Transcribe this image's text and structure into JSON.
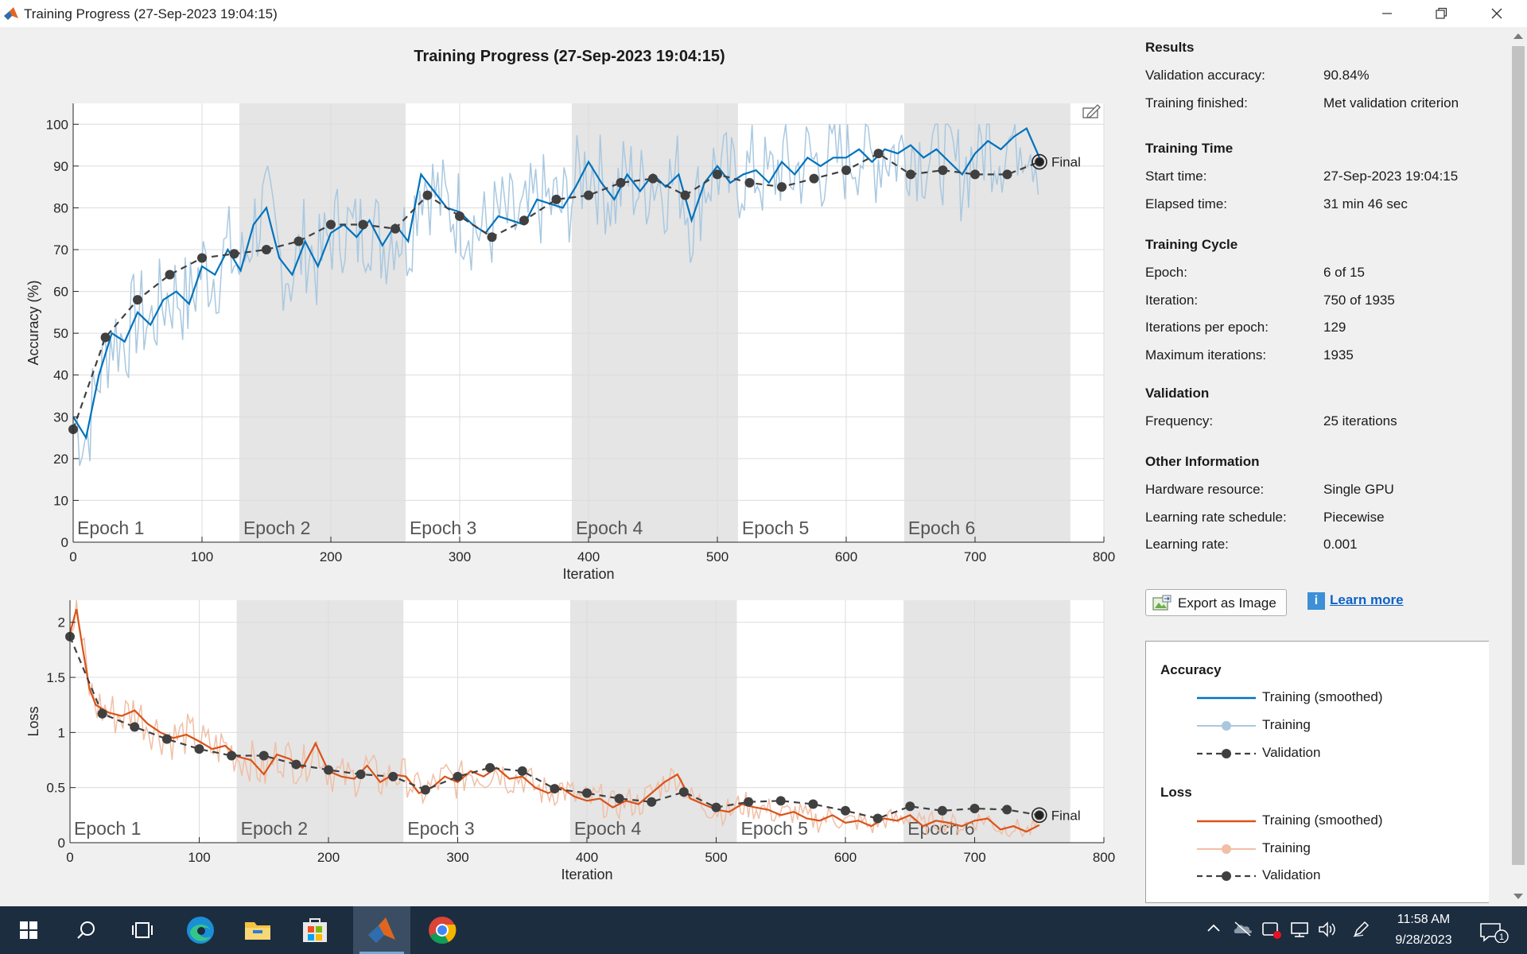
{
  "window": {
    "title": "Training Progress (27-Sep-2023 19:04:15)"
  },
  "chart_title": "Training Progress (27-Sep-2023 19:04:15)",
  "chart_data": [
    {
      "type": "line",
      "title": "Training Progress (27-Sep-2023 19:04:15)",
      "xlabel": "Iteration",
      "ylabel": "Accuracy (%)",
      "xlim": [
        0,
        800
      ],
      "ylim": [
        0,
        105
      ],
      "xticks": [
        0,
        100,
        200,
        300,
        400,
        500,
        600,
        700,
        800
      ],
      "yticks": [
        0,
        10,
        20,
        30,
        40,
        50,
        60,
        70,
        80,
        90,
        100
      ],
      "grid": true,
      "epochs": [
        "Epoch 1",
        "Epoch 2",
        "Epoch 3",
        "Epoch 4",
        "Epoch 5",
        "Epoch 6"
      ],
      "final_label": "Final",
      "series": [
        {
          "name": "Validation",
          "x": [
            0,
            25,
            50,
            75,
            100,
            125,
            150,
            175,
            200,
            225,
            250,
            275,
            300,
            325,
            350,
            375,
            400,
            425,
            450,
            475,
            500,
            525,
            550,
            575,
            600,
            625,
            650,
            675,
            700,
            725,
            750
          ],
          "values": [
            27,
            49,
            58,
            64,
            68,
            69,
            70,
            72,
            76,
            76,
            75,
            83,
            78,
            73,
            77,
            82,
            83,
            86,
            87,
            83,
            88,
            86,
            85,
            87,
            89,
            93,
            88,
            89,
            88,
            88,
            91
          ]
        },
        {
          "name": "Training (smoothed)",
          "x": [
            0,
            10,
            20,
            30,
            40,
            50,
            60,
            70,
            80,
            90,
            100,
            110,
            120,
            130,
            140,
            150,
            160,
            170,
            180,
            190,
            200,
            210,
            220,
            230,
            240,
            250,
            260,
            270,
            280,
            290,
            300,
            310,
            320,
            330,
            340,
            350,
            360,
            370,
            380,
            390,
            400,
            410,
            420,
            430,
            440,
            450,
            460,
            470,
            480,
            490,
            500,
            510,
            520,
            530,
            540,
            550,
            560,
            570,
            580,
            590,
            600,
            610,
            620,
            630,
            640,
            650,
            660,
            670,
            680,
            690,
            700,
            710,
            720,
            730,
            740,
            750
          ],
          "values": [
            30,
            25,
            40,
            50,
            48,
            55,
            52,
            58,
            60,
            57,
            66,
            64,
            70,
            65,
            76,
            80,
            68,
            64,
            72,
            66,
            74,
            76,
            73,
            77,
            71,
            76,
            72,
            88,
            84,
            80,
            79,
            76,
            74,
            78,
            77,
            76,
            82,
            81,
            80,
            85,
            91,
            86,
            82,
            88,
            84,
            88,
            85,
            88,
            77,
            86,
            90,
            86,
            88,
            89,
            86,
            91,
            88,
            92,
            90,
            92,
            92,
            94,
            91,
            94,
            93,
            95,
            92,
            94,
            91,
            88,
            93,
            96,
            94,
            97,
            99,
            92
          ]
        }
      ]
    },
    {
      "type": "line",
      "xlabel": "Iteration",
      "ylabel": "Loss",
      "xlim": [
        0,
        800
      ],
      "ylim": [
        0,
        2.2
      ],
      "xticks": [
        0,
        100,
        200,
        300,
        400,
        500,
        600,
        700,
        800
      ],
      "yticks": [
        0,
        0.5,
        1,
        1.5,
        2
      ],
      "grid": true,
      "epochs": [
        "Epoch 1",
        "Epoch 2",
        "Epoch 3",
        "Epoch 4",
        "Epoch 5",
        "Epoch 6"
      ],
      "final_label": "Final",
      "series": [
        {
          "name": "Validation",
          "x": [
            0,
            25,
            50,
            75,
            100,
            125,
            150,
            175,
            200,
            225,
            250,
            275,
            300,
            325,
            350,
            375,
            400,
            425,
            450,
            475,
            500,
            525,
            550,
            575,
            600,
            625,
            650,
            675,
            700,
            725,
            750
          ],
          "values": [
            1.87,
            1.17,
            1.05,
            0.94,
            0.85,
            0.79,
            0.79,
            0.71,
            0.66,
            0.62,
            0.6,
            0.48,
            0.6,
            0.68,
            0.65,
            0.49,
            0.45,
            0.4,
            0.37,
            0.46,
            0.32,
            0.37,
            0.38,
            0.35,
            0.29,
            0.22,
            0.33,
            0.29,
            0.31,
            0.3,
            0.25
          ]
        },
        {
          "name": "Training (smoothed)",
          "x": [
            0,
            5,
            10,
            15,
            20,
            30,
            40,
            50,
            60,
            70,
            80,
            90,
            100,
            110,
            120,
            130,
            140,
            150,
            160,
            170,
            180,
            190,
            200,
            210,
            220,
            230,
            240,
            250,
            260,
            270,
            280,
            290,
            300,
            310,
            320,
            330,
            340,
            350,
            360,
            370,
            380,
            390,
            400,
            410,
            420,
            430,
            440,
            450,
            460,
            470,
            480,
            490,
            500,
            510,
            520,
            530,
            540,
            550,
            560,
            570,
            580,
            590,
            600,
            610,
            620,
            630,
            640,
            650,
            660,
            670,
            680,
            690,
            700,
            710,
            720,
            730,
            740,
            750
          ],
          "values": [
            1.9,
            2.12,
            1.75,
            1.4,
            1.25,
            1.18,
            1.15,
            1.2,
            1.08,
            1.0,
            0.95,
            0.98,
            0.92,
            0.85,
            0.88,
            0.78,
            0.75,
            0.62,
            0.8,
            0.76,
            0.68,
            0.9,
            0.65,
            0.6,
            0.58,
            0.7,
            0.55,
            0.62,
            0.6,
            0.45,
            0.5,
            0.6,
            0.55,
            0.65,
            0.6,
            0.68,
            0.58,
            0.6,
            0.5,
            0.45,
            0.5,
            0.42,
            0.38,
            0.4,
            0.32,
            0.38,
            0.35,
            0.45,
            0.55,
            0.62,
            0.4,
            0.35,
            0.3,
            0.28,
            0.35,
            0.32,
            0.3,
            0.25,
            0.28,
            0.22,
            0.2,
            0.25,
            0.18,
            0.2,
            0.15,
            0.22,
            0.2,
            0.25,
            0.15,
            0.2,
            0.18,
            0.15,
            0.2,
            0.22,
            0.12,
            0.15,
            0.1,
            0.16
          ]
        }
      ]
    }
  ],
  "results_panel": {
    "sections": [
      {
        "heading": "Results",
        "rows": [
          {
            "label": "Validation accuracy:",
            "value": "90.84%"
          },
          {
            "label": "Training finished:",
            "value": "Met validation criterion"
          }
        ]
      },
      {
        "heading": "Training Time",
        "rows": [
          {
            "label": "Start time:",
            "value": "27-Sep-2023 19:04:15"
          },
          {
            "label": "Elapsed time:",
            "value": "31 min 46 sec"
          }
        ]
      },
      {
        "heading": "Training Cycle",
        "rows": [
          {
            "label": "Epoch:",
            "value": "6 of 15"
          },
          {
            "label": "Iteration:",
            "value": "750 of 1935"
          },
          {
            "label": "Iterations per epoch:",
            "value": "129"
          },
          {
            "label": "Maximum iterations:",
            "value": "1935"
          }
        ]
      },
      {
        "heading": "Validation",
        "rows": [
          {
            "label": "Frequency:",
            "value": "25 iterations"
          }
        ]
      },
      {
        "heading": "Other Information",
        "rows": [
          {
            "label": "Hardware resource:",
            "value": "Single GPU"
          },
          {
            "label": "Learning rate schedule:",
            "value": "Piecewise"
          },
          {
            "label": "Learning rate:",
            "value": "0.001"
          }
        ]
      }
    ]
  },
  "buttons": {
    "export_label": "Export as Image",
    "learn_more_label": "Learn more"
  },
  "legend": {
    "accuracy_heading": "Accuracy",
    "loss_heading": "Loss",
    "accuracy_items": [
      "Training (smoothed)",
      "Training",
      "Validation"
    ],
    "loss_items": [
      "Training (smoothed)",
      "Training",
      "Validation"
    ]
  },
  "colors": {
    "accuracy_smoothed": "#0072bd",
    "accuracy_raw": "#a9c8e0",
    "loss_smoothed": "#d95319",
    "loss_raw": "#f0bfa6",
    "validation": "#404040",
    "epoch_shade": "#e5e5e5"
  },
  "taskbar": {
    "time": "11:58 AM",
    "date": "9/28/2023",
    "notification_count": "1",
    "apps": [
      "start-icon",
      "search-icon",
      "task-view-icon",
      "edge-icon",
      "file-explorer-icon",
      "store-icon",
      "matlab-icon",
      "chrome-icon"
    ]
  }
}
